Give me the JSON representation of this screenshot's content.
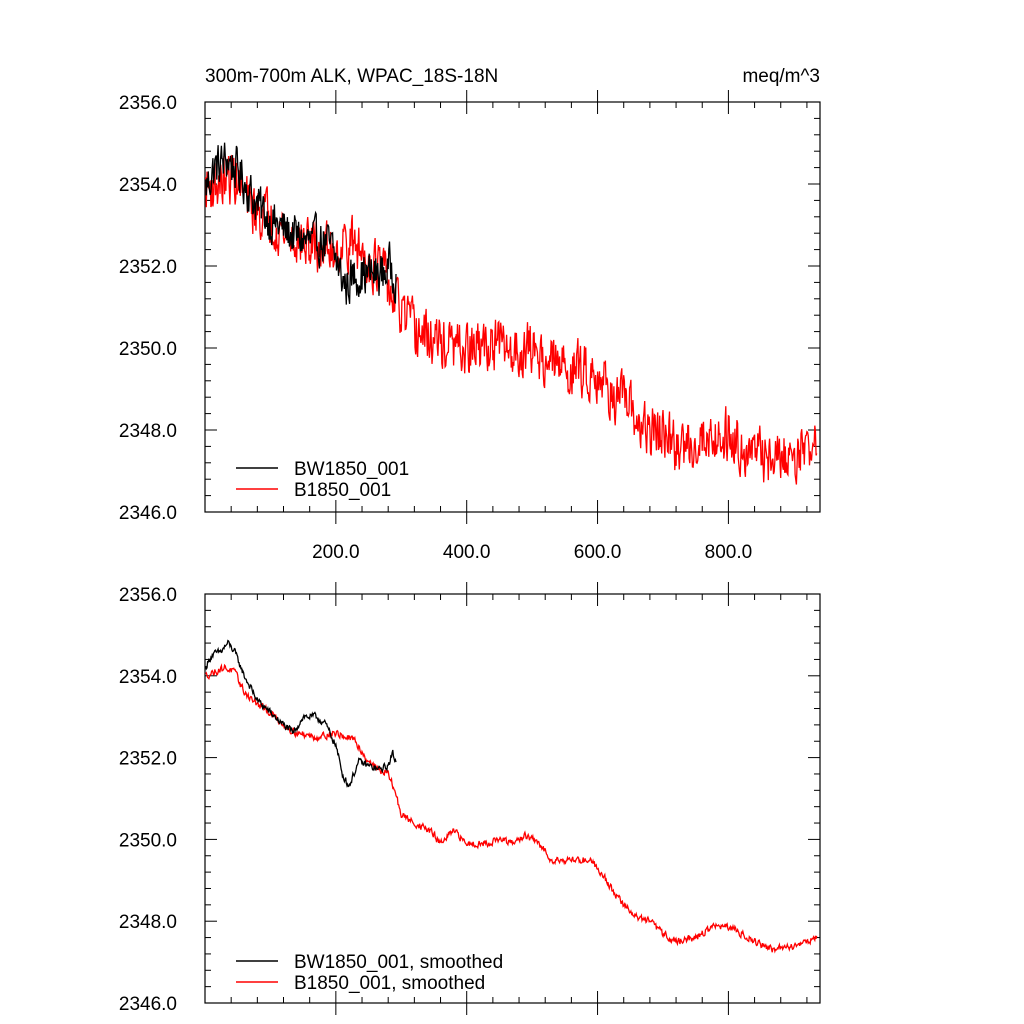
{
  "chart_data": [
    {
      "type": "line",
      "title": "300m-700m ALK, WPAC_18S-18N",
      "units": "meq/m^3",
      "xlim": [
        0,
        940
      ],
      "ylim": [
        2346,
        2356
      ],
      "xticks": [
        200,
        400,
        600,
        800
      ],
      "xtick_labels": [
        "200.0",
        "400.0",
        "600.0",
        "800.0"
      ],
      "yticks": [
        2346,
        2348,
        2350,
        2352,
        2354,
        2356
      ],
      "ytick_labels": [
        "2346.0",
        "2348.0",
        "2350.0",
        "2352.0",
        "2354.0",
        "2356.0"
      ],
      "legend_position": "bottom-left",
      "series": [
        {
          "name": "BW1850_001",
          "color": "#000000",
          "noise": 0.75,
          "anchors": [
            [
              1,
              2353.9
            ],
            [
              15,
              2354.4
            ],
            [
              35,
              2354.6
            ],
            [
              55,
              2354.2
            ],
            [
              75,
              2353.6
            ],
            [
              100,
              2353.1
            ],
            [
              130,
              2352.8
            ],
            [
              155,
              2352.6
            ],
            [
              180,
              2352.6
            ],
            [
              195,
              2352.4
            ],
            [
              205,
              2351.9
            ],
            [
              215,
              2351.5
            ],
            [
              230,
              2351.8
            ],
            [
              250,
              2351.8
            ],
            [
              270,
              2351.8
            ],
            [
              285,
              2352.0
            ],
            [
              292,
              2351.7
            ]
          ]
        },
        {
          "name": "B1850_001",
          "color": "#ff0000",
          "noise": 0.9,
          "anchors": [
            [
              1,
              2353.9
            ],
            [
              20,
              2354.0
            ],
            [
              45,
              2354.2
            ],
            [
              70,
              2353.4
            ],
            [
              100,
              2353.2
            ],
            [
              130,
              2352.7
            ],
            [
              160,
              2352.5
            ],
            [
              200,
              2352.4
            ],
            [
              220,
              2352.6
            ],
            [
              240,
              2352.3
            ],
            [
              270,
              2351.9
            ],
            [
              290,
              2351.1
            ],
            [
              320,
              2350.4
            ],
            [
              360,
              2350.1
            ],
            [
              400,
              2349.9
            ],
            [
              440,
              2350.1
            ],
            [
              470,
              2349.9
            ],
            [
              500,
              2350.0
            ],
            [
              530,
              2349.6
            ],
            [
              560,
              2349.5
            ],
            [
              600,
              2349.4
            ],
            [
              625,
              2348.8
            ],
            [
              645,
              2348.6
            ],
            [
              670,
              2348.0
            ],
            [
              700,
              2347.9
            ],
            [
              720,
              2347.5
            ],
            [
              760,
              2347.8
            ],
            [
              800,
              2347.9
            ],
            [
              840,
              2347.4
            ],
            [
              880,
              2347.3
            ],
            [
              910,
              2347.5
            ],
            [
              935,
              2347.7
            ]
          ]
        }
      ]
    },
    {
      "type": "line",
      "xlim": [
        0,
        940
      ],
      "ylim": [
        2346,
        2356
      ],
      "xticks": [
        200,
        400,
        600,
        800
      ],
      "yticks": [
        2346,
        2348,
        2350,
        2352,
        2354,
        2356
      ],
      "ytick_labels": [
        "2346.0",
        "2348.0",
        "2350.0",
        "2352.0",
        "2354.0",
        "2356.0"
      ],
      "legend_position": "bottom-left",
      "series": [
        {
          "name": "BW1850_001, smoothed",
          "color": "#000000",
          "noise": 0.12,
          "anchors": [
            [
              1,
              2354.2
            ],
            [
              10,
              2354.5
            ],
            [
              25,
              2354.6
            ],
            [
              35,
              2354.8
            ],
            [
              45,
              2354.6
            ],
            [
              60,
              2354.0
            ],
            [
              80,
              2353.4
            ],
            [
              100,
              2353.1
            ],
            [
              120,
              2352.8
            ],
            [
              135,
              2352.6
            ],
            [
              150,
              2353.0
            ],
            [
              170,
              2353.0
            ],
            [
              185,
              2352.8
            ],
            [
              200,
              2352.3
            ],
            [
              210,
              2351.6
            ],
            [
              220,
              2351.3
            ],
            [
              235,
              2351.9
            ],
            [
              250,
              2351.8
            ],
            [
              265,
              2351.7
            ],
            [
              280,
              2351.8
            ],
            [
              287,
              2352.1
            ],
            [
              292,
              2351.9
            ]
          ]
        },
        {
          "name": "B1850_001, smoothed",
          "color": "#ff0000",
          "noise": 0.12,
          "anchors": [
            [
              1,
              2354.0
            ],
            [
              15,
              2354.1
            ],
            [
              30,
              2354.2
            ],
            [
              45,
              2354.1
            ],
            [
              60,
              2353.6
            ],
            [
              80,
              2353.3
            ],
            [
              100,
              2353.1
            ],
            [
              120,
              2352.8
            ],
            [
              140,
              2352.6
            ],
            [
              170,
              2352.5
            ],
            [
              200,
              2352.6
            ],
            [
              215,
              2352.5
            ],
            [
              230,
              2352.4
            ],
            [
              245,
              2352.0
            ],
            [
              265,
              2351.7
            ],
            [
              280,
              2351.6
            ],
            [
              290,
              2351.2
            ],
            [
              300,
              2350.6
            ],
            [
              320,
              2350.4
            ],
            [
              345,
              2350.2
            ],
            [
              360,
              2349.9
            ],
            [
              380,
              2350.2
            ],
            [
              400,
              2349.9
            ],
            [
              430,
              2349.9
            ],
            [
              450,
              2350.0
            ],
            [
              470,
              2349.9
            ],
            [
              490,
              2350.1
            ],
            [
              510,
              2349.9
            ],
            [
              530,
              2349.5
            ],
            [
              560,
              2349.5
            ],
            [
              590,
              2349.5
            ],
            [
              610,
              2349.1
            ],
            [
              625,
              2348.7
            ],
            [
              640,
              2348.4
            ],
            [
              660,
              2348.1
            ],
            [
              680,
              2348.0
            ],
            [
              700,
              2347.7
            ],
            [
              720,
              2347.5
            ],
            [
              750,
              2347.6
            ],
            [
              780,
              2347.9
            ],
            [
              810,
              2347.8
            ],
            [
              840,
              2347.5
            ],
            [
              870,
              2347.3
            ],
            [
              900,
              2347.4
            ],
            [
              935,
              2347.6
            ]
          ]
        }
      ]
    }
  ]
}
